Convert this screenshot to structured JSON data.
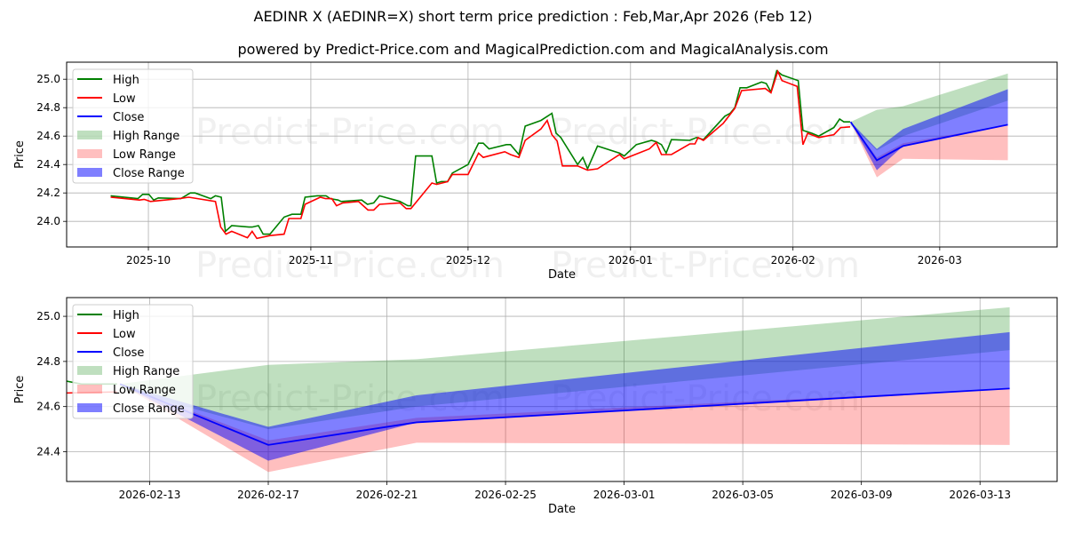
{
  "title": "AEDINR X (AEDINR=X) short term price prediction : Feb,Mar,Apr 2026 (Feb 12)",
  "subtitle": "powered by Predict-Price.com and MagicalPrediction.com and MagicalAnalysis.com",
  "watermark": "Predict-Price.com",
  "colors": {
    "high": "#008000",
    "low": "#ff0000",
    "close": "#0000ff",
    "high_range": "#008000",
    "low_range": "#ff0000",
    "close_range": "#0000ff"
  },
  "chart_data": [
    {
      "type": "line",
      "name": "history-and-forecast",
      "xlabel": "Date",
      "ylabel": "Price",
      "x_unit": "days since 2025-10-01",
      "xlim": [
        -15.6,
        173.4
      ],
      "ylim": [
        23.82,
        25.12
      ],
      "grid": true,
      "legend": "top-left",
      "x_ticks": [
        {
          "label": "2025-10",
          "x": 0
        },
        {
          "label": "2025-11",
          "x": 31
        },
        {
          "label": "2025-12",
          "x": 61
        },
        {
          "label": "2026-01",
          "x": 92
        },
        {
          "label": "2026-02",
          "x": 123
        },
        {
          "label": "2026-03",
          "x": 151
        }
      ],
      "y_ticks": [
        "24.0",
        "24.2",
        "24.4",
        "24.6",
        "24.8",
        "25.0"
      ]
    },
    {
      "type": "line",
      "name": "forecast-zoom",
      "xlabel": "Date",
      "ylabel": "Price",
      "x_unit": "days since 2025-10-01",
      "xlim": [
        132.2,
        165.6
      ],
      "ylim": [
        24.268,
        25.083
      ],
      "grid": true,
      "legend": "top-left",
      "x_ticks": [
        {
          "label": "2026-02-13",
          "x": 135
        },
        {
          "label": "2026-02-17",
          "x": 139
        },
        {
          "label": "2026-02-21",
          "x": 143
        },
        {
          "label": "2026-02-25",
          "x": 147
        },
        {
          "label": "2026-03-01",
          "x": 151
        },
        {
          "label": "2026-03-05",
          "x": 155
        },
        {
          "label": "2026-03-09",
          "x": 159
        },
        {
          "label": "2026-03-13",
          "x": 163
        }
      ],
      "y_ticks": [
        "24.4",
        "24.6",
        "24.8",
        "25.0"
      ]
    }
  ],
  "series": {
    "legend": [
      "High",
      "Low",
      "Close",
      "High Range",
      "Low Range",
      "Close Range"
    ],
    "high": [
      [
        -7.2,
        24.18
      ],
      [
        -2,
        24.16
      ],
      [
        -1.1,
        24.19
      ],
      [
        0.1,
        24.19
      ],
      [
        1,
        24.15
      ],
      [
        1.9,
        24.165
      ],
      [
        6.2,
        24.16
      ],
      [
        8,
        24.2
      ],
      [
        8.9,
        24.2
      ],
      [
        11.9,
        24.16
      ],
      [
        12.8,
        24.18
      ],
      [
        13.9,
        24.17
      ],
      [
        14.7,
        23.93
      ],
      [
        15.9,
        23.97
      ],
      [
        19.2,
        23.96
      ],
      [
        19.8,
        23.96
      ],
      [
        21,
        23.97
      ],
      [
        21.9,
        23.91
      ],
      [
        23.2,
        23.91
      ],
      [
        25.9,
        24.03
      ],
      [
        27.4,
        24.05
      ],
      [
        29.1,
        24.05
      ],
      [
        29.9,
        24.17
      ],
      [
        32.2,
        24.18
      ],
      [
        33.9,
        24.18
      ],
      [
        34.7,
        24.16
      ],
      [
        36.2,
        24.15
      ],
      [
        36.8,
        24.14
      ],
      [
        40.7,
        24.15
      ],
      [
        41.8,
        24.12
      ],
      [
        43,
        24.13
      ],
      [
        44.1,
        24.18
      ],
      [
        48,
        24.14
      ],
      [
        49.5,
        24.11
      ],
      [
        50.1,
        24.11
      ],
      [
        51,
        24.46
      ],
      [
        54.1,
        24.46
      ],
      [
        55,
        24.27
      ],
      [
        55.9,
        24.28
      ],
      [
        57.1,
        24.28
      ],
      [
        58,
        24.34
      ],
      [
        61,
        24.4
      ],
      [
        63,
        24.55
      ],
      [
        63.9,
        24.55
      ],
      [
        65,
        24.51
      ],
      [
        68.3,
        24.54
      ],
      [
        69.1,
        24.54
      ],
      [
        70.7,
        24.47
      ],
      [
        71.9,
        24.67
      ],
      [
        74.9,
        24.71
      ],
      [
        77,
        24.76
      ],
      [
        77.8,
        24.62
      ],
      [
        78.7,
        24.59
      ],
      [
        81.9,
        24.4
      ],
      [
        82.9,
        24.45
      ],
      [
        83.8,
        24.37
      ],
      [
        85.7,
        24.53
      ],
      [
        89.9,
        24.48
      ],
      [
        90.8,
        24.46
      ],
      [
        93.1,
        24.54
      ],
      [
        96,
        24.57
      ],
      [
        96.9,
        24.56
      ],
      [
        97.9,
        24.54
      ],
      [
        98.8,
        24.48
      ],
      [
        99.8,
        24.575
      ],
      [
        103.3,
        24.57
      ],
      [
        104.6,
        24.59
      ],
      [
        105.9,
        24.575
      ],
      [
        110,
        24.74
      ],
      [
        111,
        24.76
      ],
      [
        111.9,
        24.8
      ],
      [
        112.9,
        24.94
      ],
      [
        114.2,
        24.94
      ],
      [
        117,
        24.98
      ],
      [
        117.9,
        24.97
      ],
      [
        118.8,
        24.91
      ],
      [
        119.9,
        25.06
      ],
      [
        120.9,
        25.03
      ],
      [
        124,
        24.99
      ],
      [
        124.9,
        24.64
      ],
      [
        126.6,
        24.62
      ],
      [
        127.9,
        24.6
      ],
      [
        130.8,
        24.66
      ],
      [
        131.9,
        24.72
      ],
      [
        132.7,
        24.7
      ],
      [
        133.9,
        24.7
      ]
    ],
    "low": [
      [
        -7.2,
        24.17
      ],
      [
        -1.7,
        24.15
      ],
      [
        -0.8,
        24.155
      ],
      [
        0.4,
        24.14
      ],
      [
        5.9,
        24.16
      ],
      [
        7.7,
        24.17
      ],
      [
        12.8,
        24.14
      ],
      [
        13.8,
        23.96
      ],
      [
        14.8,
        23.91
      ],
      [
        15.9,
        23.93
      ],
      [
        18.9,
        23.885
      ],
      [
        19.8,
        23.93
      ],
      [
        20.7,
        23.88
      ],
      [
        23.2,
        23.9
      ],
      [
        25.9,
        23.91
      ],
      [
        26.8,
        24.02
      ],
      [
        29.1,
        24.02
      ],
      [
        29.9,
        24.12
      ],
      [
        32.8,
        24.17
      ],
      [
        33.8,
        24.16
      ],
      [
        35,
        24.16
      ],
      [
        35.9,
        24.11
      ],
      [
        37.1,
        24.13
      ],
      [
        40.1,
        24.14
      ],
      [
        41.9,
        24.08
      ],
      [
        43,
        24.08
      ],
      [
        44.1,
        24.12
      ],
      [
        48,
        24.13
      ],
      [
        49.2,
        24.09
      ],
      [
        50.1,
        24.09
      ],
      [
        54.1,
        24.27
      ],
      [
        55,
        24.26
      ],
      [
        57.1,
        24.28
      ],
      [
        58,
        24.33
      ],
      [
        61,
        24.33
      ],
      [
        63,
        24.48
      ],
      [
        63.9,
        24.45
      ],
      [
        68,
        24.49
      ],
      [
        69.1,
        24.47
      ],
      [
        70.7,
        24.45
      ],
      [
        71.9,
        24.57
      ],
      [
        74.9,
        24.65
      ],
      [
        76.1,
        24.71
      ],
      [
        77,
        24.61
      ],
      [
        78,
        24.565
      ],
      [
        79,
        24.39
      ],
      [
        81.9,
        24.39
      ],
      [
        83.8,
        24.36
      ],
      [
        85.7,
        24.37
      ],
      [
        89.9,
        24.47
      ],
      [
        90.8,
        24.44
      ],
      [
        95.6,
        24.51
      ],
      [
        96.9,
        24.555
      ],
      [
        97.9,
        24.47
      ],
      [
        99.8,
        24.47
      ],
      [
        103.3,
        24.545
      ],
      [
        104.3,
        24.545
      ],
      [
        104.9,
        24.59
      ],
      [
        105.9,
        24.57
      ],
      [
        109.7,
        24.69
      ],
      [
        111.9,
        24.795
      ],
      [
        113.2,
        24.92
      ],
      [
        117.7,
        24.935
      ],
      [
        118.8,
        24.905
      ],
      [
        120.1,
        25.055
      ],
      [
        120.9,
        24.99
      ],
      [
        123.8,
        24.95
      ],
      [
        124.9,
        24.54
      ],
      [
        125.8,
        24.62
      ],
      [
        127.9,
        24.59
      ],
      [
        130.8,
        24.61
      ],
      [
        132.1,
        24.66
      ],
      [
        133.9,
        24.665
      ]
    ],
    "forecast_x": [
      134,
      139,
      144,
      164
    ],
    "close": [
      24.7,
      24.43,
      24.53,
      24.68
    ],
    "high_range": {
      "upper": [
        24.7,
        24.785,
        24.81,
        25.04
      ],
      "lower": [
        24.68,
        24.5,
        24.6,
        24.85
      ]
    },
    "low_range": {
      "upper": [
        24.7,
        24.45,
        24.55,
        24.68
      ],
      "lower": [
        24.7,
        24.31,
        24.44,
        24.43
      ]
    },
    "close_range": {
      "upper": [
        24.7,
        24.51,
        24.65,
        24.93
      ],
      "lower": [
        24.7,
        24.36,
        24.53,
        24.68
      ]
    }
  }
}
